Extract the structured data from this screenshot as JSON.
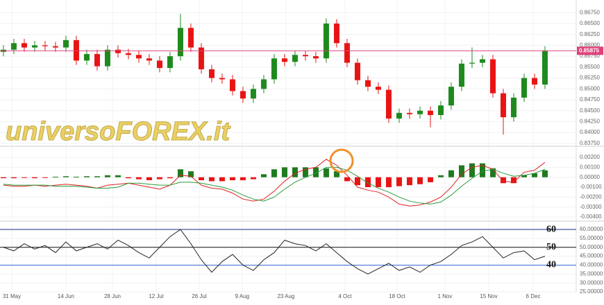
{
  "chart_data": [
    {
      "type": "candlestick",
      "watermark": "universoFOREX.it",
      "xlim": [
        -0.33,
        57.67
      ],
      "ylim": [
        0.837,
        0.8704
      ],
      "yticks": [
        {
          "value": 0.8675,
          "label": "0.86750"
        },
        {
          "value": 0.865,
          "label": "0.86500"
        },
        {
          "value": 0.8625,
          "label": "0.86250"
        },
        {
          "value": 0.86,
          "label": "0.86000"
        },
        {
          "value": 0.8575,
          "label": "0.85750"
        },
        {
          "value": 0.855,
          "label": "0.85500"
        },
        {
          "value": 0.8525,
          "label": "0.85250"
        },
        {
          "value": 0.85,
          "label": "0.85000"
        },
        {
          "value": 0.8475,
          "label": "0.84750"
        },
        {
          "value": 0.845,
          "label": "0.84500"
        },
        {
          "value": 0.8425,
          "label": "0.84250"
        },
        {
          "value": 0.84,
          "label": "0.84000"
        },
        {
          "value": 0.8375,
          "label": "0.83750"
        }
      ],
      "up_color": "#1e8a1e",
      "down_color": "#e81414",
      "last_price": {
        "value": 0.85875,
        "label": "0.85875",
        "color": "#e0407a"
      },
      "open": [
        0.8585,
        0.859,
        0.8605,
        0.8595,
        0.86,
        0.8598,
        0.8595,
        0.8612,
        0.8565,
        0.858,
        0.8552,
        0.859,
        0.8582,
        0.8578,
        0.857,
        0.8565,
        0.8548,
        0.8575,
        0.864,
        0.8595,
        0.8545,
        0.8525,
        0.8522,
        0.8495,
        0.8478,
        0.85,
        0.8522,
        0.857,
        0.8562,
        0.8578,
        0.8575,
        0.857,
        0.865,
        0.8605,
        0.856,
        0.852,
        0.8505,
        0.8498,
        0.8432,
        0.8445,
        0.8442,
        0.845,
        0.844,
        0.8462,
        0.8505,
        0.8558,
        0.856,
        0.8568,
        0.849,
        0.8435,
        0.848,
        0.8525,
        0.851
      ],
      "high": [
        0.86,
        0.8615,
        0.8615,
        0.861,
        0.861,
        0.8608,
        0.8622,
        0.8622,
        0.859,
        0.859,
        0.86,
        0.86,
        0.8592,
        0.8588,
        0.858,
        0.8575,
        0.8585,
        0.8672,
        0.865,
        0.8605,
        0.8555,
        0.8535,
        0.8532,
        0.8505,
        0.851,
        0.8532,
        0.858,
        0.858,
        0.8588,
        0.8588,
        0.8585,
        0.8662,
        0.866,
        0.8615,
        0.857,
        0.853,
        0.8515,
        0.8508,
        0.8455,
        0.8455,
        0.846,
        0.846,
        0.8472,
        0.8515,
        0.8568,
        0.8595,
        0.8578,
        0.8578,
        0.85,
        0.849,
        0.8535,
        0.8535,
        0.8598
      ],
      "low": [
        0.8575,
        0.858,
        0.8585,
        0.8585,
        0.8588,
        0.8585,
        0.8585,
        0.8555,
        0.8555,
        0.8542,
        0.8542,
        0.8572,
        0.8568,
        0.856,
        0.8555,
        0.8538,
        0.8538,
        0.8565,
        0.8585,
        0.8535,
        0.8515,
        0.8512,
        0.8485,
        0.8468,
        0.8468,
        0.849,
        0.8512,
        0.8552,
        0.8552,
        0.8565,
        0.856,
        0.856,
        0.8595,
        0.855,
        0.851,
        0.8495,
        0.8488,
        0.8422,
        0.8422,
        0.8432,
        0.8432,
        0.8412,
        0.843,
        0.8452,
        0.8495,
        0.8548,
        0.855,
        0.848,
        0.8395,
        0.8425,
        0.847,
        0.85,
        0.85
      ],
      "close": [
        0.859,
        0.8605,
        0.8595,
        0.86,
        0.8598,
        0.8595,
        0.8612,
        0.8565,
        0.858,
        0.8552,
        0.859,
        0.8582,
        0.8578,
        0.857,
        0.8565,
        0.8548,
        0.8575,
        0.864,
        0.8595,
        0.8545,
        0.8525,
        0.8522,
        0.8495,
        0.8478,
        0.85,
        0.8522,
        0.857,
        0.8562,
        0.8578,
        0.8575,
        0.857,
        0.865,
        0.8605,
        0.856,
        0.852,
        0.8505,
        0.8498,
        0.8432,
        0.8445,
        0.8442,
        0.845,
        0.844,
        0.8462,
        0.8505,
        0.8558,
        0.856,
        0.8568,
        0.849,
        0.8435,
        0.848,
        0.8525,
        0.851,
        0.8588
      ]
    },
    {
      "type": "macd",
      "xlim": [
        -0.33,
        57.67
      ],
      "ylim": [
        -0.00435,
        0.00305
      ],
      "yticks": [
        {
          "value": 0.002,
          "label": "0.00200"
        },
        {
          "value": 0.001,
          "label": "0.00100"
        },
        {
          "value": 0,
          "label": "0.00000"
        },
        {
          "value": -0.001,
          "label": "-0.00100"
        },
        {
          "value": -0.002,
          "label": "-0.00200"
        },
        {
          "value": -0.003,
          "label": "-0.00300"
        },
        {
          "value": -0.004,
          "label": "-0.00400"
        }
      ],
      "up_color": "#1e7a1e",
      "down_color": "#e81414",
      "histogram": [
        -0.0001,
        -0.0001,
        -5e-05,
        -0.0001,
        -5e-05,
        5e-05,
        0.0001,
        5e-05,
        0.0001,
        0.0001,
        0.0002,
        0.0002,
        -0.0001,
        -0.0002,
        -0.0003,
        -0.0002,
        -0.0001,
        0.0008,
        0.0006,
        -0.0003,
        -0.0004,
        -0.0004,
        -0.0003,
        -0.0003,
        -0.0002,
        0.0003,
        0.0008,
        0.001,
        0.001,
        0.001,
        0.001,
        0.0009,
        0.0006,
        -0.0004,
        -0.0008,
        -0.001,
        -0.001,
        -0.001,
        -0.0009,
        -0.0008,
        -0.0007,
        -0.0005,
        0.0002,
        0.0007,
        0.0012,
        0.0014,
        0.0014,
        0.0009,
        -0.0006,
        -0.0006,
        0.0002,
        0.0004,
        0.0007
      ],
      "series": [
        {
          "color": "#e02020",
          "values": [
            -0.0008,
            -0.0009,
            -0.0009,
            -0.0008,
            -0.0009,
            -0.0008,
            -0.0007,
            -0.0008,
            -0.0009,
            -0.0011,
            -0.0008,
            -0.0007,
            -0.0006,
            -0.0008,
            -0.001,
            -0.0012,
            -0.0008,
            0.0002,
            0.0001,
            -0.0008,
            -0.0011,
            -0.0012,
            -0.0016,
            -0.0022,
            -0.0024,
            -0.0022,
            -0.0014,
            -0.0004,
            0.0004,
            0.0008,
            0.001,
            0.0018,
            0.0012,
            0.0002,
            -0.001,
            -0.0013,
            -0.0015,
            -0.002,
            -0.0027,
            -0.0029,
            -0.0028,
            -0.0025,
            -0.002,
            -0.001,
            0.0003,
            0.001,
            0.0012,
            0.0008,
            -0.0004,
            -0.0005,
            0.0005,
            0.0007,
            0.0015
          ]
        },
        {
          "color": "#2a9a3a",
          "values": [
            -0.0007,
            -0.0008,
            -0.0008,
            -0.0008,
            -0.0008,
            -0.0009,
            -0.0009,
            -0.0009,
            -0.001,
            -0.0011,
            -0.0011,
            -0.001,
            -0.0006,
            -0.0006,
            -0.0007,
            -0.0008,
            -0.0008,
            -0.0005,
            -0.0005,
            -0.0006,
            -0.0008,
            -0.001,
            -0.0013,
            -0.0018,
            -0.0022,
            -0.0024,
            -0.002,
            -0.0012,
            -0.0005,
            0.0,
            0.0004,
            0.001,
            0.001,
            0.0007,
            0.0001,
            -0.0006,
            -0.0011,
            -0.0015,
            -0.002,
            -0.0024,
            -0.0026,
            -0.0027,
            -0.0025,
            -0.0018,
            -0.0009,
            -0.0001,
            0.0006,
            0.0008,
            0.0004,
            0.0001,
            0.0002,
            0.0004,
            0.0008
          ]
        }
      ]
    },
    {
      "type": "line",
      "xlim": [
        -0.33,
        57.67
      ],
      "ylim": [
        25,
        64.3
      ],
      "yticks": [
        {
          "value": 60,
          "label": "60.00000"
        },
        {
          "value": 55,
          "label": "55.00000"
        },
        {
          "value": 50,
          "label": "50.00000"
        },
        {
          "value": 45,
          "label": "45.00000"
        },
        {
          "value": 40,
          "label": "40.00000"
        },
        {
          "value": 35,
          "label": "35.00000"
        },
        {
          "value": 30,
          "label": "30.00000"
        },
        {
          "value": 25,
          "label": "25.00000"
        }
      ],
      "levels": [
        60,
        50,
        40
      ],
      "level_colors": [
        "#1a2a80",
        "#111111",
        "#3a6ad0"
      ],
      "color": "#222222",
      "values": [
        50,
        48,
        52,
        49,
        51,
        47,
        53,
        48,
        50,
        52,
        49,
        54,
        51,
        47,
        44,
        50,
        56,
        60,
        52,
        43,
        36,
        42,
        46,
        40,
        37,
        43,
        47,
        54,
        52,
        51,
        48,
        52,
        47,
        42,
        38,
        35,
        38,
        41,
        37,
        39,
        36,
        40,
        42,
        46,
        51,
        53,
        56,
        50,
        44,
        47,
        48,
        43,
        45
      ],
      "xticks": [
        {
          "value": 0.8,
          "label": "31 May"
        },
        {
          "value": 6,
          "label": "14 Jun"
        },
        {
          "value": 10.47,
          "label": "28 Jun"
        },
        {
          "value": 14.67,
          "label": "12 Jul"
        },
        {
          "value": 18.8,
          "label": "26 Jul"
        },
        {
          "value": 22.93,
          "label": "9 Aug"
        },
        {
          "value": 27.13,
          "label": "23 Aug"
        },
        {
          "value": 32.8,
          "label": "4 Oct"
        },
        {
          "value": 37.8,
          "label": "18 Oct"
        },
        {
          "value": 42.4,
          "label": "1 Nov"
        },
        {
          "value": 46.6,
          "label": "15 Nov"
        },
        {
          "value": 50.87,
          "label": "6 Dec"
        }
      ]
    }
  ]
}
